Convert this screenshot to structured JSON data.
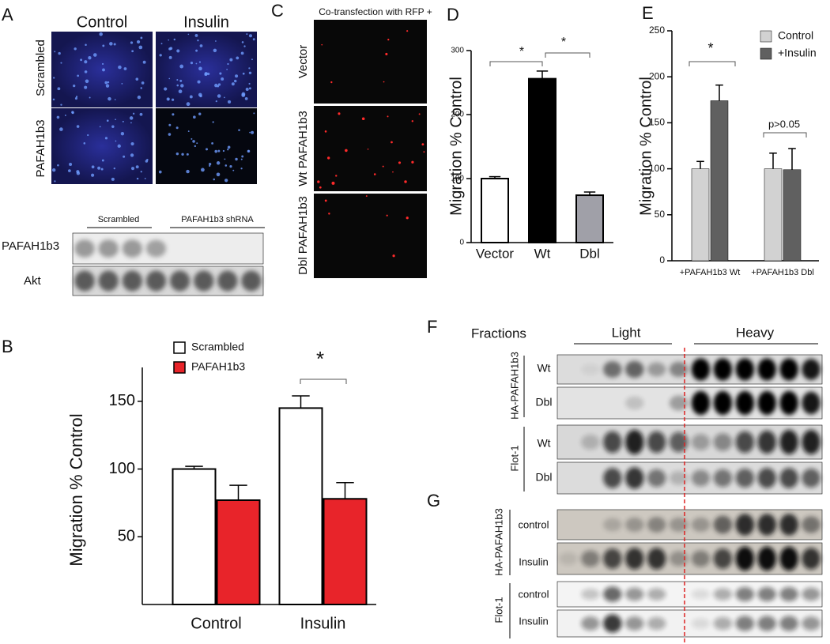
{
  "panel_a": {
    "label": "A",
    "columns": [
      "Control",
      "Insulin"
    ],
    "rows": [
      "Scrambled",
      "PAFAH1b3"
    ],
    "blot_groups": [
      "Scrambled",
      "PAFAH1b3 shRNA"
    ],
    "blot_rows": [
      "PAFAH1b3",
      "Akt"
    ]
  },
  "panel_c": {
    "label": "C",
    "title": "Co-transfection with RFP +",
    "rows": [
      "Vector",
      "Wt PAFAH1b3",
      "Dbl PAFAH1b3"
    ]
  },
  "panel_f": {
    "label": "F",
    "header": "Fractions",
    "groups": [
      "Light",
      "Heavy"
    ],
    "blots": [
      {
        "label": "HA-PAFAH1b3",
        "rows": [
          "Wt",
          "Dbl"
        ]
      },
      {
        "label": "Flot-1",
        "rows": [
          "Wt",
          "Dbl"
        ]
      }
    ]
  },
  "panel_g": {
    "label": "G",
    "blots": [
      {
        "label": "HA-PAFAH1b3",
        "rows": [
          "control",
          "Insulin"
        ]
      },
      {
        "label": "Flot-1",
        "rows": [
          "control",
          "Insulin"
        ]
      }
    ]
  },
  "chart_data": [
    {
      "type": "bar",
      "label": "B",
      "ylabel": "Migration % Control",
      "categories": [
        "Control",
        "Insulin"
      ],
      "series": [
        {
          "name": "Scrambled",
          "color": "#ffffff",
          "values": [
            100,
            145
          ],
          "errors": [
            2,
            9
          ]
        },
        {
          "name": "PAFAH1b3",
          "color": "#e8242a",
          "values": [
            77,
            78
          ],
          "errors": [
            11,
            12
          ]
        }
      ],
      "ylim": [
        0,
        175
      ],
      "yticks": [
        50,
        100,
        150
      ],
      "annotations": [
        "*"
      ]
    },
    {
      "type": "bar",
      "label": "D",
      "ylabel": "Migration % Control",
      "categories": [
        "Vector",
        "Wt",
        "Dbl"
      ],
      "series": [
        {
          "colors": [
            "#ffffff",
            "#000000",
            "#a0a0a8"
          ],
          "values": [
            100,
            256,
            74
          ],
          "errors": [
            3,
            12,
            5
          ]
        }
      ],
      "ylim": [
        0,
        300
      ],
      "yticks": [
        0,
        100,
        200,
        300
      ],
      "annotations": [
        "*",
        "*"
      ]
    },
    {
      "type": "bar",
      "label": "E",
      "ylabel": "Migration % Control",
      "categories": [
        "+PAFAH1b3 Wt",
        "+PAFAH1b3 Dbl"
      ],
      "series": [
        {
          "name": "Control",
          "color": "#d2d2d2",
          "values": [
            100,
            100
          ],
          "errors": [
            8,
            17
          ]
        },
        {
          "name": "+Insulin",
          "color": "#606060",
          "values": [
            174,
            99
          ],
          "errors": [
            17,
            23
          ]
        }
      ],
      "ylim": [
        0,
        250
      ],
      "yticks": [
        0,
        50,
        100,
        150,
        200,
        250
      ],
      "annotations": [
        "*",
        "p>0.05"
      ]
    }
  ]
}
